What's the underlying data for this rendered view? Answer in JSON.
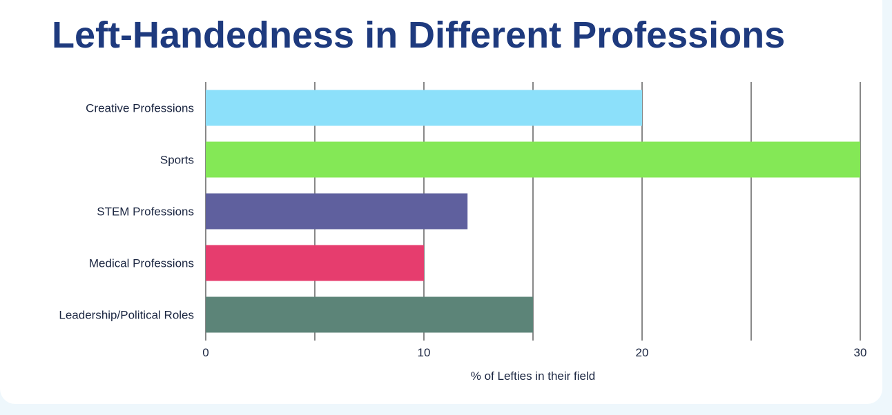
{
  "chart_data": {
    "type": "bar",
    "orientation": "horizontal",
    "title": "Left-Handedness in Different Professions",
    "categories": [
      "Creative Professions",
      "Sports",
      "STEM Professions",
      "Medical Professions",
      "Leadership/Political Roles"
    ],
    "values": [
      20,
      30,
      12,
      10,
      15
    ],
    "colors": [
      "#8ce0fa",
      "#84e856",
      "#5f609e",
      "#e63d6e",
      "#5c8478"
    ],
    "xlabel": "% of Lefties in their field",
    "ylabel": "",
    "xlim": [
      0,
      30
    ],
    "gridlines": [
      0,
      5,
      10,
      15,
      20,
      25,
      30
    ],
    "tick_labels": [
      "0",
      "10",
      "20",
      "30"
    ],
    "tick_values": [
      0,
      10,
      20,
      30
    ],
    "grid": true
  }
}
